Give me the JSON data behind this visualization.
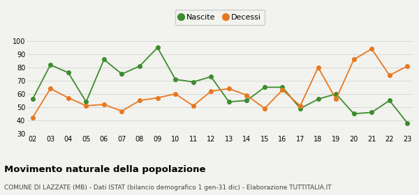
{
  "years": [
    "02",
    "03",
    "04",
    "05",
    "06",
    "07",
    "08",
    "09",
    "10",
    "11",
    "12",
    "13",
    "14",
    "15",
    "16",
    "17",
    "18",
    "19",
    "20",
    "21",
    "22",
    "23"
  ],
  "nascite": [
    56,
    82,
    76,
    54,
    86,
    75,
    81,
    95,
    71,
    69,
    73,
    54,
    55,
    65,
    65,
    49,
    56,
    60,
    45,
    46,
    55,
    38
  ],
  "decessi": [
    42,
    64,
    57,
    51,
    52,
    47,
    55,
    57,
    60,
    51,
    62,
    64,
    59,
    49,
    63,
    51,
    80,
    56,
    86,
    94,
    74,
    81
  ],
  "nascite_color": "#3d8c2f",
  "decessi_color": "#e87820",
  "bg_color": "#f2f2ee",
  "grid_color": "#d8d8d8",
  "ylim": [
    30,
    100
  ],
  "yticks": [
    30,
    40,
    50,
    60,
    70,
    80,
    90,
    100
  ],
  "title": "Movimento naturale della popolazione",
  "subtitle": "COMUNE DI LAZZATE (MB) - Dati ISTAT (bilancio demografico 1 gen-31 dic) - Elaborazione TUTTITALIA.IT",
  "legend_nascite": "Nascite",
  "legend_decessi": "Decessi",
  "title_fontsize": 9.5,
  "subtitle_fontsize": 6.5,
  "tick_fontsize": 7,
  "legend_fontsize": 8,
  "marker_size": 4,
  "line_width": 1.3
}
